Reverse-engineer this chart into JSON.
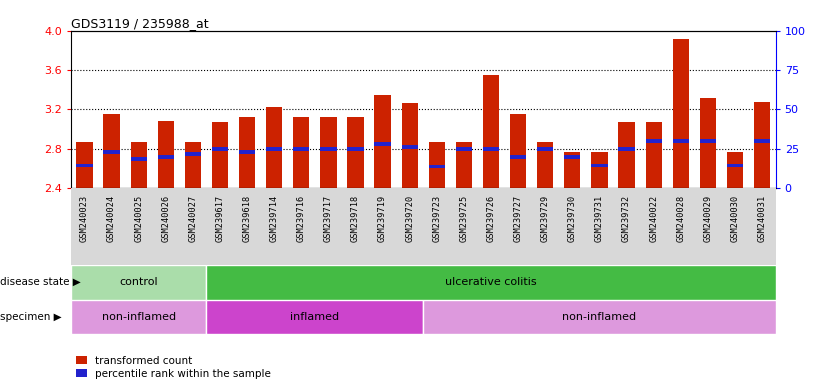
{
  "title": "GDS3119 / 235988_at",
  "samples": [
    "GSM240023",
    "GSM240024",
    "GSM240025",
    "GSM240026",
    "GSM240027",
    "GSM239617",
    "GSM239618",
    "GSM239714",
    "GSM239716",
    "GSM239717",
    "GSM239718",
    "GSM239719",
    "GSM239720",
    "GSM239723",
    "GSM239725",
    "GSM239726",
    "GSM239727",
    "GSM239729",
    "GSM239730",
    "GSM239731",
    "GSM239732",
    "GSM240022",
    "GSM240028",
    "GSM240029",
    "GSM240030",
    "GSM240031"
  ],
  "bar_values": [
    2.87,
    3.15,
    2.87,
    3.08,
    2.87,
    3.07,
    3.12,
    3.22,
    3.12,
    3.12,
    3.12,
    3.35,
    3.27,
    2.87,
    2.87,
    3.55,
    3.15,
    2.87,
    2.77,
    2.77,
    3.07,
    3.07,
    3.92,
    3.32,
    2.77,
    3.28
  ],
  "blue_values": [
    2.63,
    2.77,
    2.7,
    2.72,
    2.75,
    2.8,
    2.77,
    2.8,
    2.8,
    2.8,
    2.8,
    2.85,
    2.82,
    2.62,
    2.8,
    2.8,
    2.72,
    2.8,
    2.72,
    2.63,
    2.8,
    2.88,
    2.88,
    2.88,
    2.63,
    2.88
  ],
  "ylim": [
    2.4,
    4.0
  ],
  "yticks": [
    2.4,
    2.8,
    3.2,
    3.6,
    4.0
  ],
  "right_yticks": [
    0,
    25,
    50,
    75,
    100
  ],
  "bar_color": "#cc2200",
  "blue_color": "#2222cc",
  "plot_bg": "#ffffff",
  "disease_state": [
    {
      "label": "control",
      "start": 0,
      "end": 5,
      "color": "#aaddaa"
    },
    {
      "label": "ulcerative colitis",
      "start": 5,
      "end": 26,
      "color": "#44bb44"
    }
  ],
  "specimen": [
    {
      "label": "non-inflamed",
      "start": 0,
      "end": 5,
      "color": "#dd99dd"
    },
    {
      "label": "inflamed",
      "start": 5,
      "end": 13,
      "color": "#cc44cc"
    },
    {
      "label": "non-inflamed",
      "start": 13,
      "end": 26,
      "color": "#dd99dd"
    }
  ],
  "legend_items": [
    {
      "label": "transformed count",
      "color": "#cc2200"
    },
    {
      "label": "percentile rank within the sample",
      "color": "#2222cc"
    }
  ],
  "grid_dotted": [
    2.8,
    3.2,
    3.6
  ],
  "label_left_disease": "disease state ▶",
  "label_left_specimen": "specimen ▶"
}
